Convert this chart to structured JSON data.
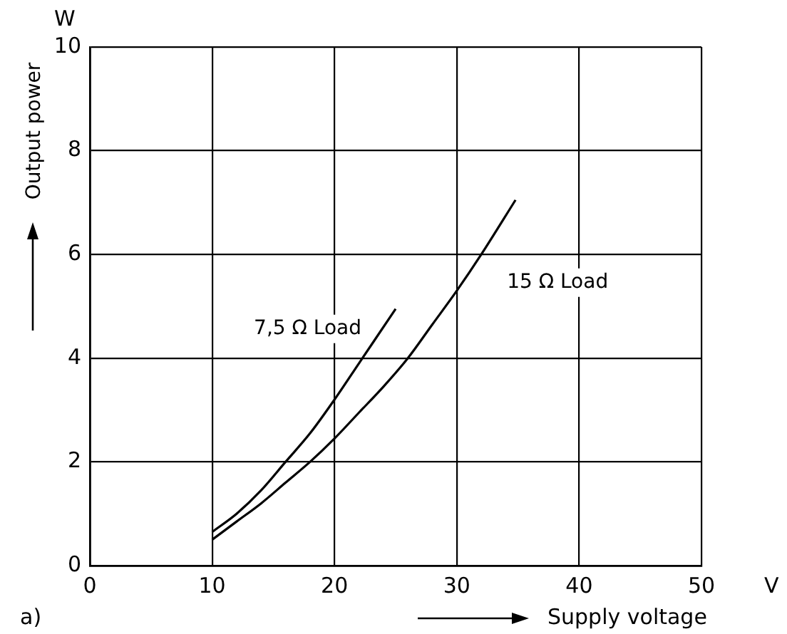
{
  "chart_data": {
    "type": "line",
    "xlabel": "Supply voltage",
    "ylabel": "Output power",
    "annotations": [
      "W",
      "V",
      "a)"
    ],
    "xlim": [
      0,
      50
    ],
    "xticks": [
      0,
      10,
      20,
      30,
      40,
      50
    ],
    "ylim": [
      0,
      10
    ],
    "yticks": [
      0,
      2,
      4,
      6,
      8,
      10
    ],
    "grid": true,
    "legend": false,
    "marker": "none",
    "line_style": "solid",
    "series": [
      {
        "name": "7,5 Ω Load",
        "color": "#000000",
        "x": [
          10,
          12,
          14,
          16,
          18,
          20,
          22,
          25
        ],
        "values": [
          0.65,
          1.0,
          1.45,
          2.0,
          2.55,
          3.2,
          3.9,
          4.95
        ]
      },
      {
        "name": "15 Ω Load",
        "color": "#000000",
        "x": [
          10,
          12,
          14,
          16,
          18,
          20,
          22,
          24,
          26,
          28,
          30,
          32,
          34.8
        ],
        "values": [
          0.5,
          0.85,
          1.2,
          1.6,
          2.0,
          2.45,
          2.95,
          3.45,
          4.0,
          4.65,
          5.3,
          6.0,
          7.05
        ]
      }
    ]
  }
}
